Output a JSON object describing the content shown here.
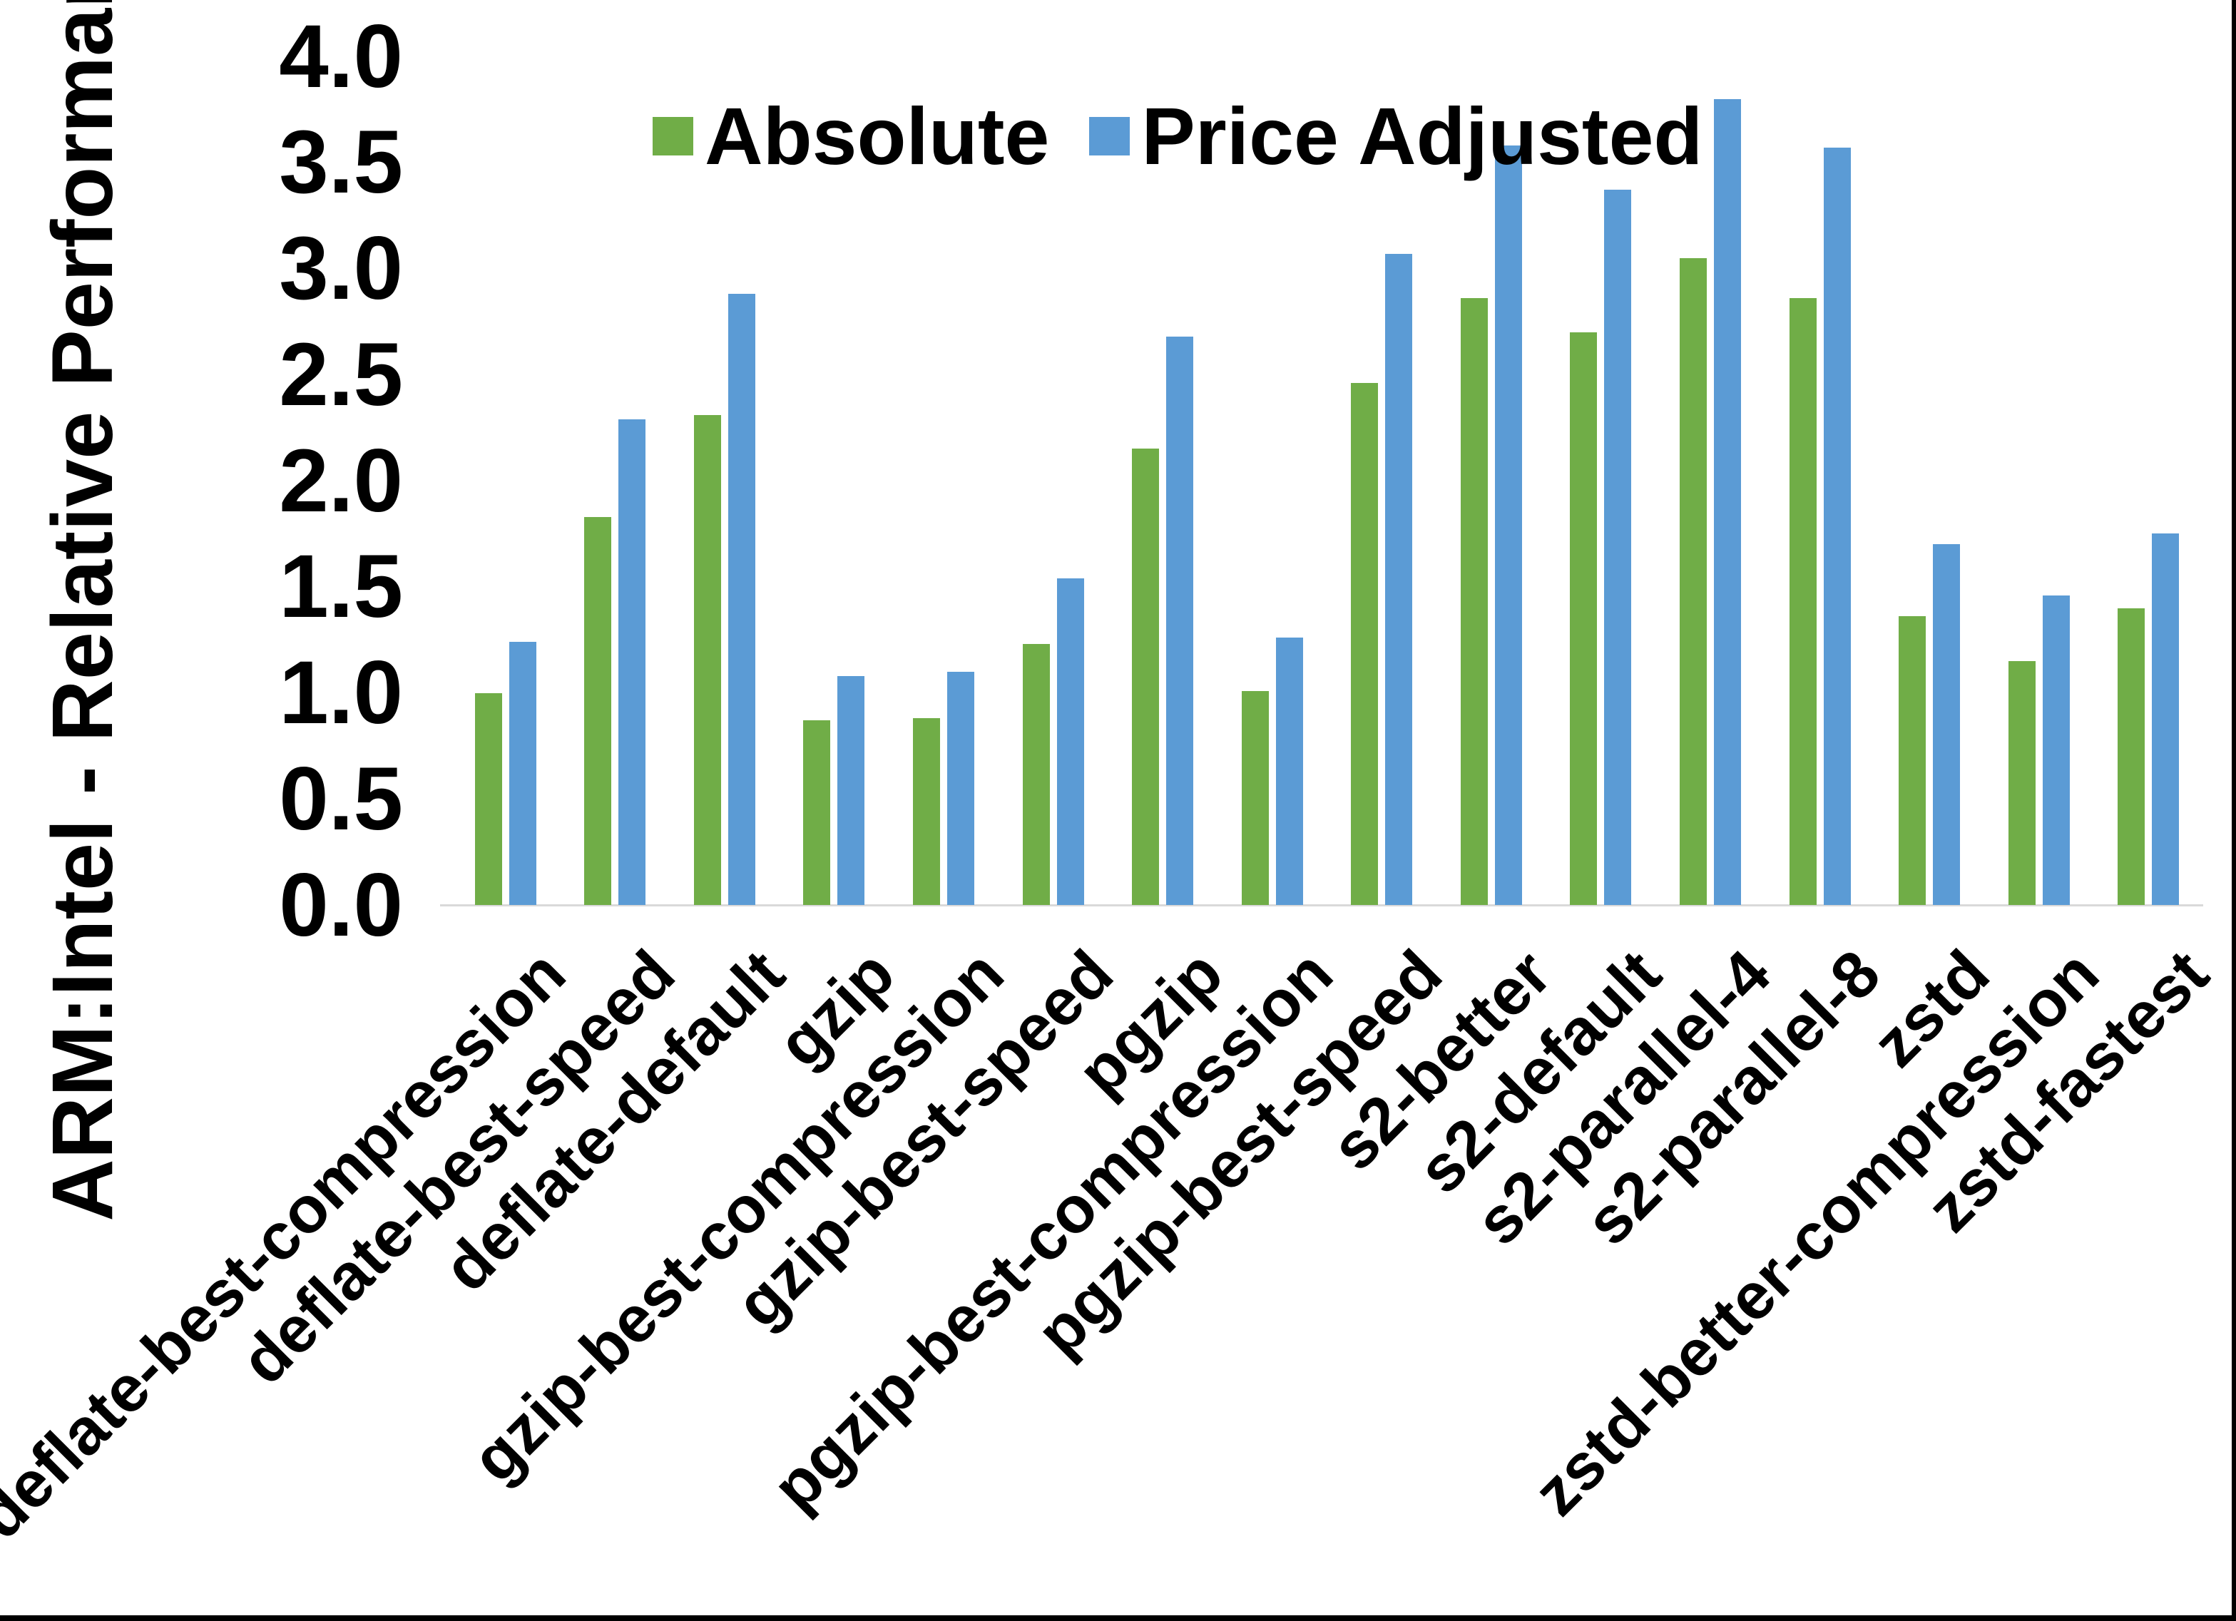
{
  "chart_data": {
    "type": "bar",
    "title": "",
    "ylabel": "ARM:Intel - Relative Performance",
    "xlabel": "",
    "ylim": [
      0.0,
      4.0
    ],
    "ytick_step": 0.5,
    "ytick_labels": [
      "0.0",
      "0.5",
      "1.0",
      "1.5",
      "2.0",
      "2.5",
      "3.0",
      "3.5",
      "4.0"
    ],
    "grid": false,
    "legend_position": "top-center",
    "background_color": "#FFFFFF",
    "axis_line_color": "#D9D9D9",
    "text_color": "#000000",
    "frame_border_color": "#000000",
    "categories": [
      "deflate-best-compression",
      "deflate-best-speed",
      "deflate-default",
      "gzip",
      "gzip-best-compression",
      "gzip-best-speed",
      "pgzip",
      "pgzip-best-compression",
      "pgzip-best-speed",
      "s2-better",
      "s2-default",
      "s2-parallel-4",
      "s2-parallel-8",
      "zstd",
      "zstd-better-compression",
      "zstd-fastest"
    ],
    "series": [
      {
        "name": "Absolute",
        "color": "#70AD47",
        "values": [
          1.0,
          1.83,
          2.31,
          0.87,
          0.88,
          1.23,
          2.15,
          1.01,
          2.46,
          2.86,
          2.7,
          3.05,
          2.86,
          1.36,
          1.15,
          1.4
        ]
      },
      {
        "name": "Price Adjusted",
        "color": "#5B9BD5",
        "values": [
          1.24,
          2.29,
          2.88,
          1.08,
          1.1,
          1.54,
          2.68,
          1.26,
          3.07,
          3.58,
          3.37,
          3.8,
          3.57,
          1.7,
          1.46,
          1.75
        ]
      }
    ]
  }
}
